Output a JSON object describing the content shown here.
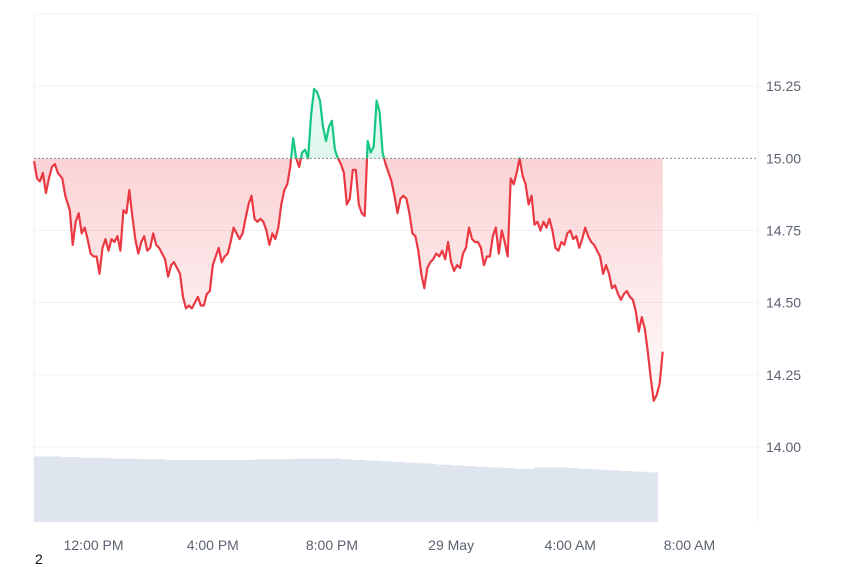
{
  "chart_data": {
    "type": "area",
    "baseline": 15.0,
    "ylim": [
      13.74,
      15.5
    ],
    "y_ticks": [
      "15.25",
      "15.00",
      "14.75",
      "14.50",
      "14.25",
      "14.00"
    ],
    "x_ticks": [
      "12:00 PM",
      "4:00 PM",
      "8:00 PM",
      "29 May",
      "4:00 AM",
      "8:00 AM"
    ],
    "x_tick_hours": [
      2,
      6,
      10,
      14,
      18,
      22
    ],
    "x_range_hours": [
      0,
      24.3
    ],
    "grid": true,
    "colors": {
      "above": "#16c784",
      "below": "#ea3943",
      "volume": "#dfe5ee",
      "grid": "#eef0f4",
      "baseline": "#8a8f98"
    },
    "series": [
      {
        "points": [
          [
            0.0,
            14.99
          ],
          [
            0.1,
            14.93
          ],
          [
            0.2,
            14.92
          ],
          [
            0.3,
            14.95
          ],
          [
            0.4,
            14.88
          ],
          [
            0.5,
            14.93
          ],
          [
            0.6,
            14.97
          ],
          [
            0.7,
            14.98
          ],
          [
            0.8,
            14.95
          ],
          [
            0.95,
            14.93
          ],
          [
            1.05,
            14.87
          ],
          [
            1.2,
            14.82
          ],
          [
            1.3,
            14.7
          ],
          [
            1.4,
            14.78
          ],
          [
            1.5,
            14.81
          ],
          [
            1.6,
            14.74
          ],
          [
            1.7,
            14.76
          ],
          [
            1.8,
            14.72
          ],
          [
            1.9,
            14.67
          ],
          [
            2.0,
            14.66
          ],
          [
            2.1,
            14.66
          ],
          [
            2.2,
            14.6
          ],
          [
            2.3,
            14.69
          ],
          [
            2.4,
            14.72
          ],
          [
            2.5,
            14.68
          ],
          [
            2.6,
            14.72
          ],
          [
            2.7,
            14.71
          ],
          [
            2.8,
            14.73
          ],
          [
            2.9,
            14.68
          ],
          [
            3.0,
            14.82
          ],
          [
            3.1,
            14.81
          ],
          [
            3.2,
            14.89
          ],
          [
            3.3,
            14.8
          ],
          [
            3.4,
            14.72
          ],
          [
            3.5,
            14.67
          ],
          [
            3.6,
            14.71
          ],
          [
            3.7,
            14.73
          ],
          [
            3.8,
            14.68
          ],
          [
            3.9,
            14.69
          ],
          [
            4.0,
            14.74
          ],
          [
            4.1,
            14.7
          ],
          [
            4.2,
            14.69
          ],
          [
            4.3,
            14.67
          ],
          [
            4.4,
            14.65
          ],
          [
            4.5,
            14.59
          ],
          [
            4.6,
            14.63
          ],
          [
            4.7,
            14.64
          ],
          [
            4.8,
            14.62
          ],
          [
            4.9,
            14.6
          ],
          [
            5.0,
            14.52
          ],
          [
            5.1,
            14.48
          ],
          [
            5.2,
            14.49
          ],
          [
            5.3,
            14.48
          ],
          [
            5.4,
            14.5
          ],
          [
            5.5,
            14.52
          ],
          [
            5.6,
            14.49
          ],
          [
            5.7,
            14.49
          ],
          [
            5.8,
            14.53
          ],
          [
            5.9,
            14.54
          ],
          [
            6.0,
            14.63
          ],
          [
            6.1,
            14.66
          ],
          [
            6.2,
            14.69
          ],
          [
            6.3,
            14.64
          ],
          [
            6.4,
            14.66
          ],
          [
            6.5,
            14.67
          ],
          [
            6.6,
            14.71
          ],
          [
            6.7,
            14.76
          ],
          [
            6.8,
            14.74
          ],
          [
            6.9,
            14.72
          ],
          [
            7.0,
            14.74
          ],
          [
            7.1,
            14.79
          ],
          [
            7.2,
            14.84
          ],
          [
            7.3,
            14.87
          ],
          [
            7.4,
            14.79
          ],
          [
            7.5,
            14.78
          ],
          [
            7.6,
            14.79
          ],
          [
            7.7,
            14.78
          ],
          [
            7.8,
            14.75
          ],
          [
            7.9,
            14.7
          ],
          [
            8.0,
            14.74
          ],
          [
            8.1,
            14.72
          ],
          [
            8.2,
            14.76
          ],
          [
            8.3,
            14.84
          ],
          [
            8.4,
            14.89
          ],
          [
            8.5,
            14.91
          ],
          [
            8.6,
            14.97
          ],
          [
            8.7,
            15.07
          ],
          [
            8.8,
            15.0
          ],
          [
            8.9,
            14.97
          ],
          [
            9.0,
            15.02
          ],
          [
            9.1,
            15.03
          ],
          [
            9.2,
            15.0
          ],
          [
            9.3,
            15.15
          ],
          [
            9.4,
            15.24
          ],
          [
            9.5,
            15.23
          ],
          [
            9.6,
            15.2
          ],
          [
            9.7,
            15.11
          ],
          [
            9.8,
            15.06
          ],
          [
            9.9,
            15.11
          ],
          [
            10.0,
            15.13
          ],
          [
            10.1,
            15.03
          ],
          [
            10.2,
            15.0
          ],
          [
            10.3,
            14.98
          ],
          [
            10.4,
            14.95
          ],
          [
            10.5,
            14.84
          ],
          [
            10.6,
            14.86
          ],
          [
            10.7,
            14.96
          ],
          [
            10.8,
            14.96
          ],
          [
            10.9,
            14.84
          ],
          [
            11.0,
            14.81
          ],
          [
            11.1,
            14.8
          ],
          [
            11.2,
            15.06
          ],
          [
            11.3,
            15.02
          ],
          [
            11.4,
            15.04
          ],
          [
            11.5,
            15.2
          ],
          [
            11.6,
            15.16
          ],
          [
            11.7,
            15.02
          ],
          [
            11.8,
            14.98
          ],
          [
            11.9,
            14.95
          ],
          [
            12.0,
            14.92
          ],
          [
            12.1,
            14.87
          ],
          [
            12.2,
            14.81
          ],
          [
            12.3,
            14.86
          ],
          [
            12.4,
            14.87
          ],
          [
            12.5,
            14.86
          ],
          [
            12.6,
            14.81
          ],
          [
            12.7,
            14.74
          ],
          [
            12.8,
            14.73
          ],
          [
            12.9,
            14.68
          ],
          [
            13.0,
            14.6
          ],
          [
            13.1,
            14.55
          ],
          [
            13.2,
            14.62
          ],
          [
            13.3,
            14.64
          ],
          [
            13.4,
            14.65
          ],
          [
            13.5,
            14.67
          ],
          [
            13.6,
            14.66
          ],
          [
            13.7,
            14.68
          ],
          [
            13.8,
            14.65
          ],
          [
            13.9,
            14.71
          ],
          [
            14.0,
            14.64
          ],
          [
            14.1,
            14.61
          ],
          [
            14.2,
            14.63
          ],
          [
            14.3,
            14.62
          ],
          [
            14.4,
            14.67
          ],
          [
            14.5,
            14.69
          ],
          [
            14.6,
            14.76
          ],
          [
            14.7,
            14.72
          ],
          [
            14.8,
            14.71
          ],
          [
            14.9,
            14.71
          ],
          [
            15.0,
            14.69
          ],
          [
            15.1,
            14.63
          ],
          [
            15.2,
            14.66
          ],
          [
            15.3,
            14.66
          ],
          [
            15.4,
            14.73
          ],
          [
            15.5,
            14.76
          ],
          [
            15.6,
            14.67
          ],
          [
            15.7,
            14.75
          ],
          [
            15.8,
            14.71
          ],
          [
            15.9,
            14.66
          ],
          [
            16.0,
            14.93
          ],
          [
            16.1,
            14.91
          ],
          [
            16.2,
            14.95
          ],
          [
            16.3,
            15.0
          ],
          [
            16.4,
            14.94
          ],
          [
            16.5,
            14.91
          ],
          [
            16.6,
            14.84
          ],
          [
            16.7,
            14.87
          ],
          [
            16.8,
            14.77
          ],
          [
            16.9,
            14.78
          ],
          [
            17.0,
            14.75
          ],
          [
            17.1,
            14.78
          ],
          [
            17.2,
            14.76
          ],
          [
            17.3,
            14.79
          ],
          [
            17.4,
            14.75
          ],
          [
            17.5,
            14.69
          ],
          [
            17.6,
            14.68
          ],
          [
            17.7,
            14.71
          ],
          [
            17.8,
            14.7
          ],
          [
            17.9,
            14.74
          ],
          [
            18.0,
            14.75
          ],
          [
            18.1,
            14.72
          ],
          [
            18.2,
            14.73
          ],
          [
            18.3,
            14.69
          ],
          [
            18.4,
            14.72
          ],
          [
            18.5,
            14.76
          ],
          [
            18.6,
            14.73
          ],
          [
            18.7,
            14.71
          ],
          [
            18.8,
            14.7
          ],
          [
            18.9,
            14.68
          ],
          [
            19.0,
            14.66
          ],
          [
            19.1,
            14.6
          ],
          [
            19.2,
            14.63
          ],
          [
            19.3,
            14.6
          ],
          [
            19.4,
            14.55
          ],
          [
            19.5,
            14.56
          ],
          [
            19.6,
            14.53
          ],
          [
            19.7,
            14.51
          ],
          [
            19.8,
            14.53
          ],
          [
            19.9,
            14.54
          ],
          [
            20.0,
            14.52
          ],
          [
            20.1,
            14.51
          ],
          [
            20.2,
            14.47
          ],
          [
            20.3,
            14.4
          ],
          [
            20.4,
            14.45
          ],
          [
            20.5,
            14.41
          ],
          [
            20.6,
            14.33
          ],
          [
            20.7,
            14.24
          ],
          [
            20.8,
            14.16
          ],
          [
            20.9,
            14.18
          ],
          [
            21.0,
            14.22
          ],
          [
            21.1,
            14.33
          ]
        ]
      }
    ],
    "volume": [
      0.95,
      0.95,
      0.95,
      0.95,
      0.94,
      0.94,
      0.94,
      0.93,
      0.93,
      0.93,
      0.93,
      0.92,
      0.92,
      0.92,
      0.92,
      0.92,
      0.91,
      0.91,
      0.91,
      0.91,
      0.9,
      0.9,
      0.9,
      0.9,
      0.9,
      0.9,
      0.9,
      0.9,
      0.9,
      0.9,
      0.9,
      0.9,
      0.9,
      0.9,
      0.91,
      0.91,
      0.91,
      0.91,
      0.91,
      0.91,
      0.92,
      0.92,
      0.92,
      0.92,
      0.92,
      0.92,
      0.92,
      0.91,
      0.91,
      0.9,
      0.9,
      0.89,
      0.89,
      0.88,
      0.88,
      0.87,
      0.87,
      0.86,
      0.86,
      0.85,
      0.85,
      0.84,
      0.83,
      0.83,
      0.82,
      0.82,
      0.81,
      0.81,
      0.8,
      0.8,
      0.79,
      0.79,
      0.78,
      0.78,
      0.77,
      0.77,
      0.77,
      0.79,
      0.79,
      0.79,
      0.79,
      0.79,
      0.78,
      0.78,
      0.77,
      0.77,
      0.76,
      0.76,
      0.75,
      0.75,
      0.74,
      0.74,
      0.73,
      0.73,
      0.72,
      0.72
    ],
    "footnote": "2"
  }
}
